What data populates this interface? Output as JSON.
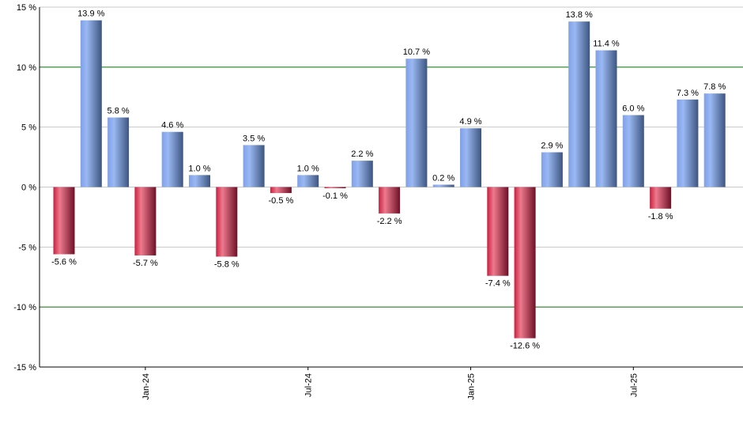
{
  "chart_data": {
    "type": "bar",
    "title": "",
    "xlabel": "",
    "ylabel": "",
    "ylim": [
      -15,
      15
    ],
    "yticks": [
      15,
      10,
      5,
      0,
      -5,
      -10,
      -15
    ],
    "ytick_suffix": " %",
    "grid": true,
    "highlight_lines": [
      10,
      -10
    ],
    "x_tick_labels": [
      {
        "index": 3,
        "label": "Jan-24"
      },
      {
        "index": 9,
        "label": "Jul-24"
      },
      {
        "index": 15,
        "label": "Jan-25"
      },
      {
        "index": 21,
        "label": "Jul-25"
      }
    ],
    "values": [
      -5.6,
      13.9,
      5.8,
      -5.7,
      4.6,
      1.0,
      -5.8,
      3.5,
      -0.5,
      1.0,
      -0.1,
      2.2,
      -2.2,
      10.7,
      0.2,
      4.9,
      -7.4,
      -12.6,
      2.9,
      13.8,
      11.4,
      6.0,
      -1.8,
      7.3,
      7.8
    ],
    "colors": {
      "positive": "#6f8fd0",
      "negative": "#d02848",
      "highlight_line": "#007000",
      "grid": "#c8c8c8"
    }
  }
}
